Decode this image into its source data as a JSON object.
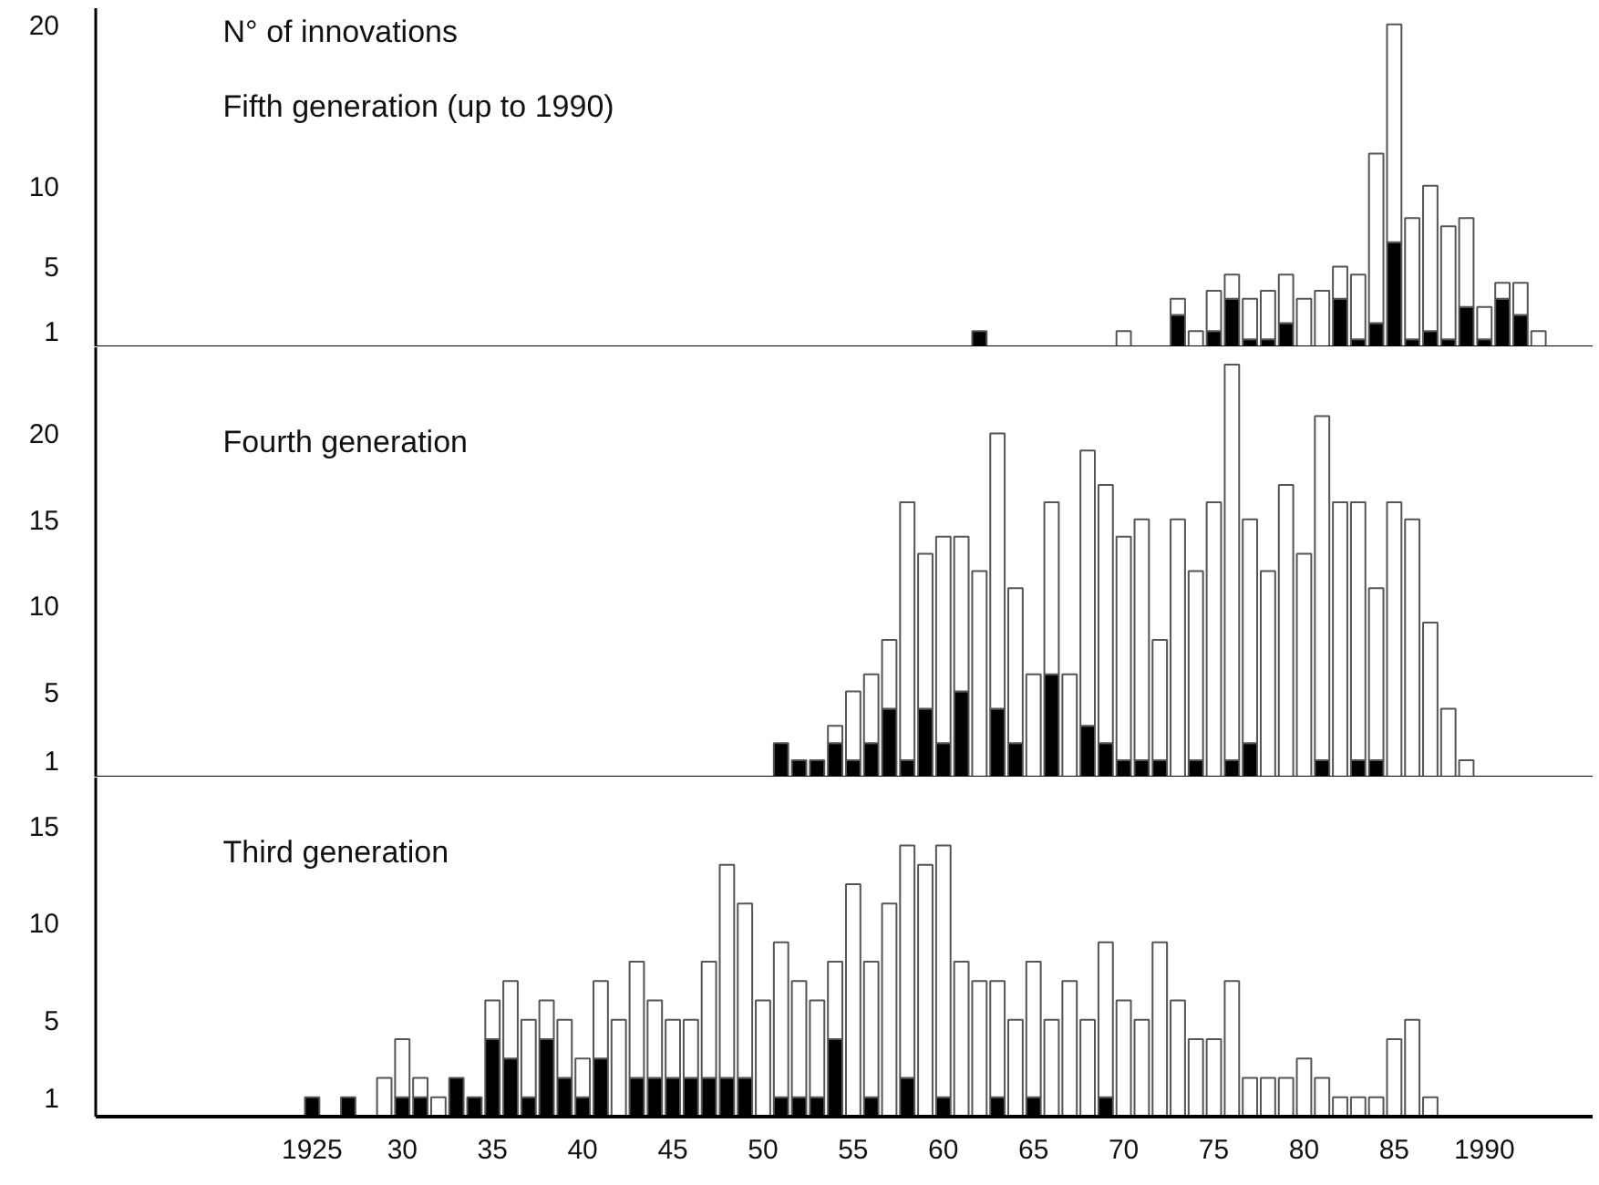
{
  "chart_data": [
    {
      "type": "bar",
      "title": "Fifth generation (up to 1990)",
      "ylabel": "N° of innovations",
      "stacked": true,
      "grid": false,
      "tick_labels": "y",
      "x": [
        1962,
        1970,
        1973,
        1974,
        1975,
        1976,
        1977,
        1978,
        1979,
        1980,
        1981,
        1982,
        1983,
        1984,
        1985,
        1986,
        1987,
        1988,
        1989,
        1990,
        1991,
        1992,
        1993
      ],
      "series": [
        {
          "color": "#000000",
          "values": [
            1,
            null,
            2,
            null,
            1,
            3,
            0.5,
            0.5,
            1.5,
            null,
            null,
            3,
            0.5,
            1.5,
            6.5,
            0.5,
            1,
            0.5,
            2.5,
            0.5,
            3,
            2,
            null
          ]
        },
        {
          "color": "#ffffff",
          "values": [
            null,
            1,
            1,
            1,
            2.5,
            1.5,
            2.5,
            3,
            3,
            3,
            3.5,
            2,
            4,
            10.5,
            13.5,
            7.5,
            9,
            7,
            5.5,
            2,
            1,
            2,
            1
          ]
        }
      ],
      "xlim": [
        1913,
        1996
      ],
      "ylim": [
        0,
        21
      ],
      "yticks": [
        1,
        5,
        10,
        20
      ]
    },
    {
      "type": "bar",
      "title": "Fourth generation",
      "stacked": true,
      "grid": false,
      "tick_labels": "y",
      "x": [
        1951,
        1952,
        1953,
        1954,
        1955,
        1956,
        1957,
        1958,
        1959,
        1960,
        1961,
        1962,
        1963,
        1964,
        1965,
        1966,
        1967,
        1968,
        1969,
        1970,
        1971,
        1972,
        1973,
        1974,
        1975,
        1976,
        1977,
        1978,
        1979,
        1980,
        1981,
        1982,
        1983,
        1984,
        1985,
        1986,
        1987,
        1988,
        1989
      ],
      "series": [
        {
          "color": "#000000",
          "values": [
            2,
            1,
            1,
            2,
            1,
            2,
            4,
            1,
            4,
            2,
            5,
            null,
            4,
            2,
            null,
            6,
            null,
            3,
            2,
            1,
            1,
            1,
            null,
            1,
            null,
            1,
            2,
            null,
            null,
            null,
            1,
            null,
            1,
            1,
            null,
            null,
            null,
            null,
            null
          ]
        },
        {
          "color": "#ffffff",
          "values": [
            null,
            null,
            null,
            1,
            4,
            4,
            4,
            15,
            9,
            12,
            9,
            12,
            16,
            9,
            6,
            10,
            6,
            16,
            15,
            13,
            14,
            7,
            15,
            11,
            16,
            23,
            13,
            12,
            17,
            13,
            20,
            16,
            15,
            10,
            16,
            15,
            9,
            4,
            1
          ]
        }
      ],
      "xlim": [
        1913,
        1996
      ],
      "ylim": [
        0,
        25
      ],
      "yticks": [
        1,
        5,
        10,
        15,
        20
      ]
    },
    {
      "type": "bar",
      "title": "Third generation",
      "stacked": true,
      "grid": false,
      "x": [
        1925,
        1926,
        1927,
        1928,
        1929,
        1930,
        1931,
        1932,
        1933,
        1934,
        1935,
        1936,
        1937,
        1938,
        1939,
        1940,
        1941,
        1942,
        1943,
        1944,
        1945,
        1946,
        1947,
        1948,
        1949,
        1950,
        1951,
        1952,
        1953,
        1954,
        1955,
        1956,
        1957,
        1958,
        1959,
        1960,
        1961,
        1962,
        1963,
        1964,
        1965,
        1966,
        1967,
        1968,
        1969,
        1970,
        1971,
        1972,
        1973,
        1974,
        1975,
        1976,
        1977,
        1978,
        1979,
        1980,
        1981,
        1982,
        1983,
        1984,
        1985,
        1986,
        1987
      ],
      "series": [
        {
          "color": "#000000",
          "values": [
            1,
            null,
            1,
            null,
            null,
            1,
            1,
            null,
            2,
            1,
            4,
            3,
            1,
            4,
            2,
            1,
            3,
            null,
            2,
            2,
            2,
            2,
            2,
            2,
            2,
            null,
            1,
            1,
            1,
            4,
            null,
            1,
            null,
            2,
            null,
            1,
            null,
            null,
            1,
            null,
            1,
            null,
            null,
            null,
            1,
            null,
            null,
            null,
            null,
            null,
            null,
            null,
            null,
            null,
            null,
            null,
            null,
            null,
            null,
            null,
            null,
            null,
            null
          ]
        },
        {
          "color": "#ffffff",
          "values": [
            null,
            null,
            null,
            null,
            2,
            3,
            1,
            1,
            null,
            null,
            2,
            4,
            4,
            2,
            3,
            2,
            4,
            5,
            6,
            4,
            3,
            3,
            6,
            11,
            9,
            6,
            8,
            6,
            5,
            4,
            12,
            7,
            11,
            12,
            13,
            13,
            8,
            7,
            6,
            5,
            7,
            5,
            7,
            5,
            8,
            6,
            5,
            9,
            6,
            4,
            4,
            7,
            2,
            2,
            2,
            3,
            2,
            1,
            1,
            1,
            4,
            5,
            1
          ]
        }
      ],
      "xlim": [
        1913,
        1996
      ],
      "xticks": [
        {
          "value": 1925,
          "label": "1925"
        },
        {
          "value": 1930,
          "label": "30"
        },
        {
          "value": 1935,
          "label": "35"
        },
        {
          "value": 1940,
          "label": "40"
        },
        {
          "value": 1945,
          "label": "45"
        },
        {
          "value": 1950,
          "label": "50"
        },
        {
          "value": 1955,
          "label": "55"
        },
        {
          "value": 1960,
          "label": "60"
        },
        {
          "value": 1965,
          "label": "65"
        },
        {
          "value": 1970,
          "label": "70"
        },
        {
          "value": 1975,
          "label": "75"
        },
        {
          "value": 1980,
          "label": "80"
        },
        {
          "value": 1985,
          "label": "85"
        },
        {
          "value": 1990,
          "label": "1990"
        }
      ],
      "ylim": [
        0,
        17.5
      ],
      "yticks": [
        1,
        5,
        10,
        15
      ]
    }
  ]
}
